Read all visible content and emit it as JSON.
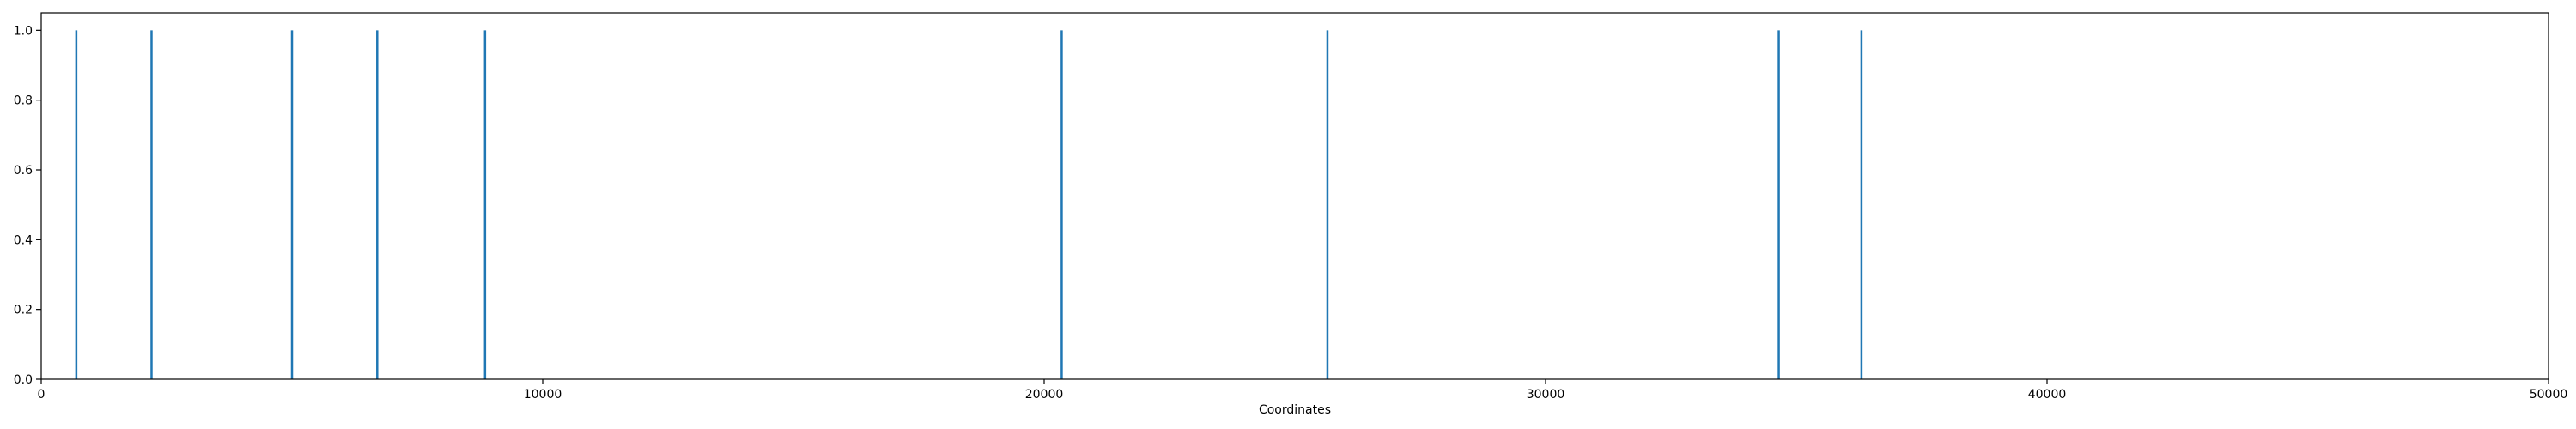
{
  "chart_data": {
    "type": "bar",
    "title": "",
    "xlabel": "Coordinates",
    "ylabel": "",
    "xlim": [
      0,
      50000
    ],
    "ylim": [
      0,
      1.05
    ],
    "grid": false,
    "legend": "none",
    "color": "#1f77b4",
    "x_ticks": [
      "0",
      "10000",
      "20000",
      "30000",
      "40000",
      "50000"
    ],
    "y_ticks": [
      "0.0",
      "0.2",
      "0.4",
      "0.6",
      "0.8",
      "1.0"
    ],
    "x": [
      700,
      2200,
      5000,
      6700,
      8850,
      20350,
      25650,
      34650,
      36300
    ],
    "values": [
      1,
      1,
      1,
      1,
      1,
      1,
      1,
      1,
      1
    ]
  }
}
